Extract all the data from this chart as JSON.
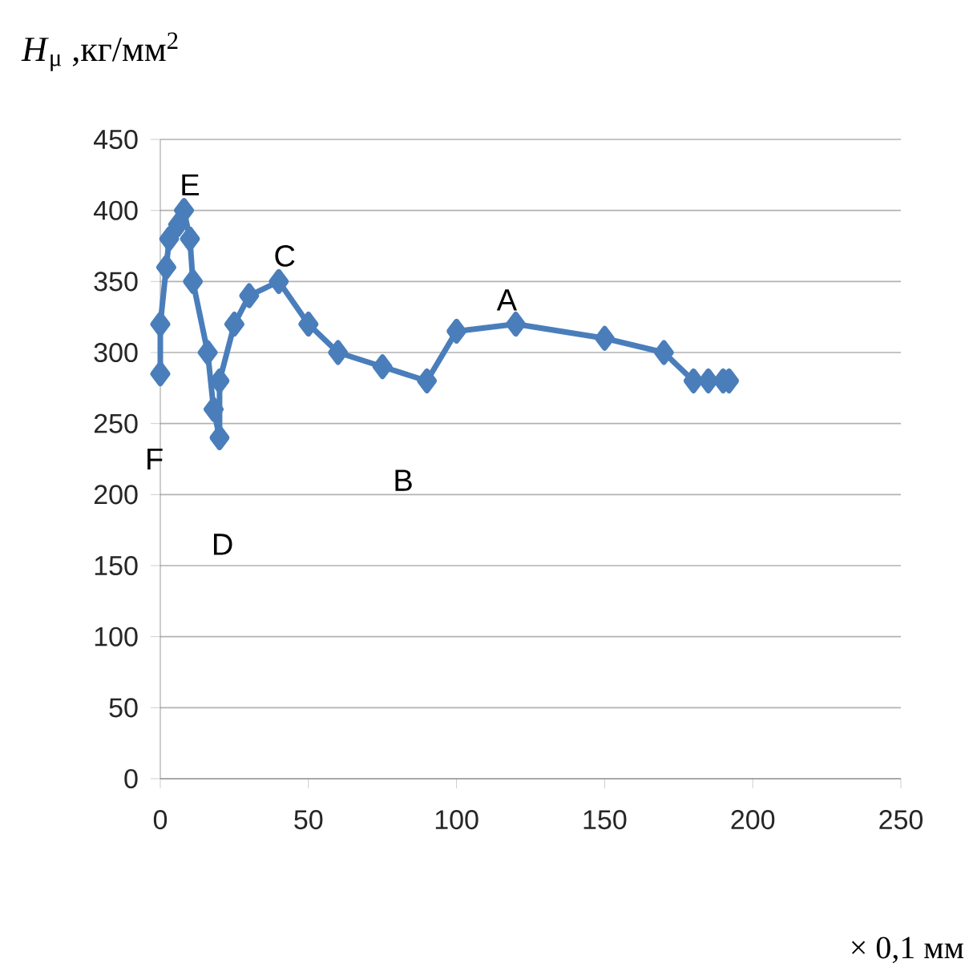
{
  "chart_data": {
    "type": "line",
    "ylabel": "*H*$_{μ}$ ,кг/мм$^{2}$",
    "xlabel": "× 0,1 мм",
    "series": [
      {
        "color": "#4a7ebb",
        "x": [
          0,
          0,
          2,
          3,
          6,
          8,
          10,
          11,
          16,
          18,
          20,
          20,
          25,
          30,
          40,
          50,
          60,
          75,
          90,
          100,
          120,
          150,
          170,
          180,
          185,
          190,
          192
        ],
        "values": [
          285,
          320,
          360,
          380,
          390,
          400,
          380,
          350,
          300,
          260,
          240,
          280,
          320,
          340,
          350,
          320,
          300,
          290,
          280,
          315,
          320,
          310,
          300,
          280,
          280,
          280,
          280
        ]
      }
    ],
    "marker": "diamond",
    "line_style": "solid",
    "xlim": [
      0,
      250
    ],
    "xticks": [
      0,
      50,
      100,
      150,
      200,
      250
    ],
    "ylim": [
      0,
      450
    ],
    "yticks": [
      0,
      50,
      100,
      150,
      200,
      250,
      300,
      350,
      400,
      450
    ],
    "grid": "y",
    "annotations": [
      "A",
      "B",
      "C",
      "D",
      "E",
      "F"
    ]
  }
}
